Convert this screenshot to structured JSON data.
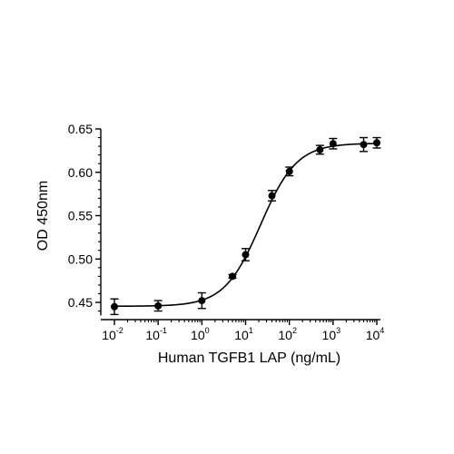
{
  "chart_data": {
    "type": "scatter",
    "title": "",
    "xlabel": "Human TGFB1 LAP (ng/mL)",
    "ylabel": "OD 450nm",
    "x_scale": "log10",
    "xlim": [
      0.01,
      10000
    ],
    "ylim": [
      0.435,
      0.65
    ],
    "y_ticks": [
      "0.45",
      "0.50",
      "0.55",
      "0.60",
      "0.65"
    ],
    "x_ticks": [
      {
        "base": "10",
        "exp": "-2"
      },
      {
        "base": "10",
        "exp": "-1"
      },
      {
        "base": "10",
        "exp": "0"
      },
      {
        "base": "10",
        "exp": "1"
      },
      {
        "base": "10",
        "exp": "2"
      },
      {
        "base": "10",
        "exp": "3"
      },
      {
        "base": "10",
        "exp": "4"
      }
    ],
    "grid": false,
    "legend": "none",
    "points": [
      {
        "x": 0.01,
        "y": 0.445,
        "err": 0.009
      },
      {
        "x": 0.1,
        "y": 0.446,
        "err": 0.006
      },
      {
        "x": 1,
        "y": 0.452,
        "err": 0.009
      },
      {
        "x": 5,
        "y": 0.48,
        "err": 0.002
      },
      {
        "x": 10,
        "y": 0.505,
        "err": 0.007
      },
      {
        "x": 40,
        "y": 0.573,
        "err": 0.006
      },
      {
        "x": 100,
        "y": 0.601,
        "err": 0.005
      },
      {
        "x": 500,
        "y": 0.626,
        "err": 0.005
      },
      {
        "x": 1000,
        "y": 0.633,
        "err": 0.006
      },
      {
        "x": 5000,
        "y": 0.632,
        "err": 0.008
      },
      {
        "x": 10000,
        "y": 0.634,
        "err": 0.006
      }
    ],
    "fit_curve": {
      "model": "4PL",
      "bottom": 0.4455,
      "top": 0.6335,
      "ec50": 22,
      "hill": 1.05
    },
    "colors": {
      "marker": "#000000",
      "line": "#000000",
      "axis": "#000000"
    }
  }
}
